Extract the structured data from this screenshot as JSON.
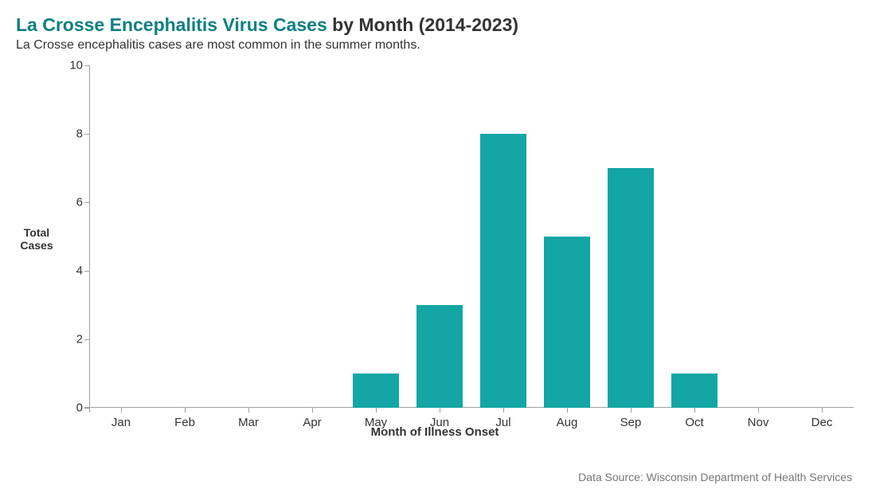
{
  "title": {
    "highlight": "La Crosse Encephalitis Virus Cases",
    "rest": " by Month (2014-2023)",
    "highlight_color": "#0e8080",
    "rest_color": "#333333",
    "fontsize": 23
  },
  "subtitle": {
    "text": "La Crosse encephalitis cases are most common in the summer months.",
    "fontsize": 16,
    "color": "#333333"
  },
  "chart": {
    "type": "bar",
    "categories": [
      "Jan",
      "Feb",
      "Mar",
      "Apr",
      "May",
      "Jun",
      "Jul",
      "Aug",
      "Sep",
      "Oct",
      "Nov",
      "Dec"
    ],
    "values": [
      0,
      0,
      0,
      0,
      1,
      3,
      8,
      5,
      7,
      1,
      0,
      0
    ],
    "bar_color": "#14a6a5",
    "bar_width_ratio": 0.72,
    "background_color": "#ffffff",
    "axis_color": "#a0a0a0",
    "ylabel_line1": "Total",
    "ylabel_line2": "Cases",
    "xlabel": "Month of Illness Onset",
    "ylim": [
      0,
      10
    ],
    "ytick_step": 2,
    "tick_fontsize": 15,
    "label_fontsize": 15,
    "ylabel_fontsize": 14
  },
  "source": {
    "text": "Data Source: Wisconsin Department of Health Services",
    "fontsize": 14,
    "color": "#777777"
  }
}
